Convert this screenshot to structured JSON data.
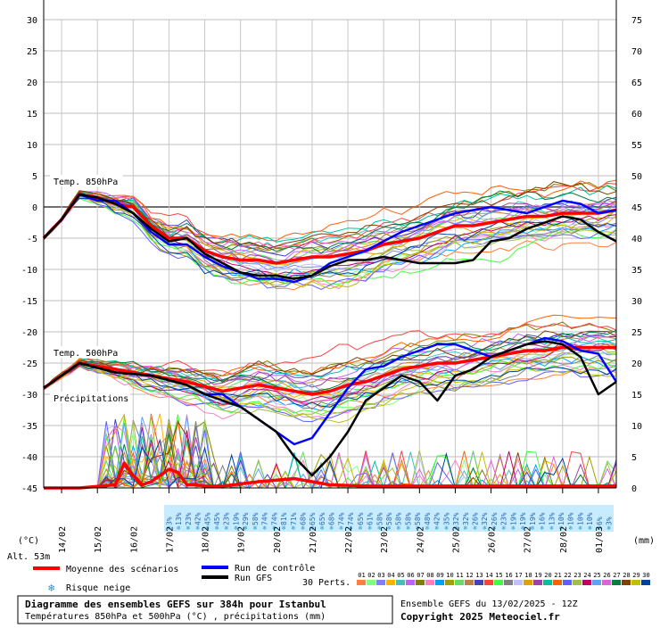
{
  "chart_data": {
    "type": "line",
    "title": "Diagramme des ensembles GEFS sur 384h pour Istanbul",
    "subtitle": "Températures 850hPa et 500hPa (°C) , précipitations (mm)",
    "copyright": "Copyright 2025 Meteociel.fr",
    "run_info": "Ensemble GEFS du 13/02/2025 - 12Z",
    "altitude": "Alt. 53m",
    "left_unit": "(°C)",
    "right_unit": "(mm)",
    "labels": {
      "t850": "Temp. 850hPa",
      "t500": "Temp. 500hPa",
      "precip": "Précipitations"
    },
    "left_axis": {
      "ylim": [
        -45,
        30
      ],
      "ticks": [
        30,
        25,
        20,
        15,
        10,
        5,
        0,
        -5,
        -10,
        -15,
        -20,
        -25,
        -30,
        -35,
        -40,
        -45
      ]
    },
    "right_axis": {
      "ylim": [
        0,
        75
      ],
      "ticks": [
        75,
        70,
        65,
        60,
        55,
        50,
        45,
        40,
        35,
        30,
        25,
        20,
        15,
        10,
        5,
        0
      ]
    },
    "dates": [
      "14/02",
      "15/02",
      "16/02",
      "17/02",
      "18/02",
      "19/02",
      "20/02",
      "21/02",
      "22/02",
      "23/02",
      "24/02",
      "25/02",
      "26/02",
      "27/02",
      "28/02",
      "01/03"
    ],
    "x_range_hours": [
      0,
      384
    ],
    "snow_risk": [
      "3%",
      "13%",
      "23%",
      "42%",
      "45%",
      "45%",
      "23%",
      "19%",
      "29%",
      "58%",
      "74%",
      "74%",
      "81%",
      "71%",
      "68%",
      "65%",
      "65%",
      "68%",
      "74%",
      "74%",
      "65%",
      "61%",
      "58%",
      "58%",
      "58%",
      "58%",
      "58%",
      "48%",
      "42%",
      "35%",
      "32%",
      "32%",
      "26%",
      "32%",
      "26%",
      "23%",
      "19%",
      "19%",
      "19%",
      "16%",
      "13%",
      "10%",
      "10%",
      "10%",
      "10%",
      "6%",
      "3%"
    ],
    "series": [
      {
        "name": "Moyenne des scénarios 850hPa",
        "color": "#ff0000",
        "x": [
          0,
          6,
          12,
          24,
          36,
          48,
          60,
          72,
          84,
          96,
          108,
          120,
          132,
          144,
          156,
          168,
          180,
          192,
          204,
          216,
          228,
          240,
          252,
          264,
          276,
          288,
          300,
          312,
          324,
          336,
          348,
          360,
          372,
          384
        ],
        "values": [
          -5,
          -3.5,
          -2,
          2,
          1.5,
          0.5,
          0,
          -3,
          -5,
          -5,
          -7,
          -8,
          -8.5,
          -8.5,
          -9,
          -8.5,
          -8,
          -8,
          -7.5,
          -7,
          -6,
          -5.5,
          -5,
          -4,
          -3,
          -3,
          -2.5,
          -2,
          -1.5,
          -1.5,
          -1,
          -1,
          -1,
          -0.5
        ]
      },
      {
        "name": "Moyenne des scénarios 500hPa",
        "color": "#ff0000",
        "x": [
          0,
          12,
          24,
          48,
          72,
          96,
          120,
          144,
          168,
          180,
          192,
          204,
          216,
          228,
          240,
          252,
          264,
          276,
          288,
          300,
          312,
          324,
          336,
          348,
          360,
          372,
          384
        ],
        "values": [
          -29,
          -27,
          -25,
          -26,
          -27,
          -28,
          -29.5,
          -28.5,
          -29.5,
          -30,
          -29.5,
          -28.5,
          -28,
          -27,
          -26,
          -25.5,
          -25,
          -25,
          -24.5,
          -24,
          -23.5,
          -23,
          -23,
          -22.5,
          -22.5,
          -22.5,
          -22.5
        ]
      },
      {
        "name": "Run de contrôle 850hPa",
        "color": "#0000ff",
        "x": [
          0,
          12,
          24,
          36,
          48,
          60,
          72,
          84,
          96,
          108,
          120,
          132,
          144,
          156,
          168,
          180,
          192,
          204,
          216,
          228,
          240,
          252,
          264,
          276,
          288,
          300,
          312,
          324,
          336,
          348,
          360,
          372,
          384
        ],
        "values": [
          -5,
          -2,
          2,
          1,
          1,
          -1,
          -4,
          -6,
          -6,
          -8,
          -9.5,
          -10.5,
          -11.5,
          -11.5,
          -12,
          -11,
          -9,
          -8,
          -7,
          -5.5,
          -4,
          -3,
          -2,
          -1,
          -0.5,
          0,
          -0.5,
          -1,
          0,
          1,
          0.5,
          -1,
          -0.5
        ]
      },
      {
        "name": "Run de contrôle 500hPa",
        "color": "#0000ff",
        "x": [
          0,
          24,
          48,
          72,
          96,
          108,
          120,
          132,
          144,
          156,
          168,
          180,
          192,
          204,
          216,
          228,
          240,
          252,
          264,
          276,
          288,
          300,
          312,
          324,
          336,
          348,
          360,
          372,
          384
        ],
        "values": [
          -29,
          -25,
          -26.5,
          -27,
          -28.5,
          -30,
          -30,
          -32,
          -34,
          -36,
          -38,
          -37,
          -33,
          -29,
          -26,
          -25.5,
          -24,
          -23,
          -22,
          -22,
          -23,
          -24,
          -23,
          -22,
          -21,
          -21.5,
          -23,
          -23.5,
          -28
        ]
      },
      {
        "name": "Run GFS 850hPa",
        "color": "#000000",
        "x": [
          0,
          12,
          24,
          36,
          48,
          60,
          72,
          84,
          96,
          108,
          120,
          132,
          144,
          156,
          168,
          180,
          192,
          204,
          216,
          228,
          240,
          252,
          264,
          276,
          288,
          300,
          312,
          324,
          336,
          348,
          360,
          372,
          384
        ],
        "values": [
          -5,
          -2,
          2,
          1.5,
          0.5,
          -1,
          -3.5,
          -5.5,
          -5,
          -7.5,
          -9,
          -10.5,
          -11,
          -11,
          -11.5,
          -11,
          -9.5,
          -8.5,
          -8.5,
          -8,
          -8.5,
          -9,
          -9,
          -9,
          -8.5,
          -5.5,
          -5,
          -3.5,
          -2.5,
          -1.5,
          -2,
          -4,
          -5.5
        ]
      },
      {
        "name": "Run GFS 500hPa",
        "color": "#000000",
        "x": [
          0,
          24,
          48,
          72,
          96,
          108,
          120,
          132,
          144,
          156,
          168,
          180,
          192,
          204,
          216,
          228,
          240,
          252,
          264,
          276,
          288,
          300,
          312,
          324,
          336,
          348,
          360,
          372,
          384
        ],
        "values": [
          -29,
          -25,
          -26.5,
          -27,
          -28.5,
          -30,
          -31,
          -32,
          -34,
          -36,
          -40,
          -43,
          -40,
          -36,
          -31,
          -29,
          -27,
          -28,
          -31,
          -27,
          -26,
          -24,
          -23,
          -22,
          -21.5,
          -22,
          -24,
          -30,
          -28
        ]
      },
      {
        "name": "Moyenne des scénarios précipitations (mm)",
        "color": "#ff0000",
        "x": [
          0,
          24,
          48,
          54,
          60,
          66,
          72,
          84,
          90,
          96,
          102,
          108,
          120,
          144,
          168,
          192,
          216,
          240,
          264,
          288,
          312,
          336,
          360,
          384
        ],
        "values": [
          0,
          0,
          0.5,
          4,
          2,
          0.5,
          1,
          3,
          2.5,
          0.5,
          0.5,
          0.3,
          0.3,
          1,
          1.5,
          0.5,
          0.3,
          0.3,
          0.3,
          0.3,
          0.3,
          0.3,
          0.3,
          0.3
        ]
      }
    ],
    "legend": {
      "mean": "Moyenne des scénarios",
      "control": "Run de contrôle",
      "gfs": "Run GFS",
      "perts": "30 Perts.",
      "snow": "Risque neige",
      "pert_numbers": [
        "01",
        "02",
        "03",
        "04",
        "05",
        "06",
        "07",
        "08",
        "09",
        "10",
        "11",
        "12",
        "13",
        "14",
        "15",
        "16",
        "17",
        "18",
        "19",
        "20",
        "21",
        "22",
        "23",
        "24",
        "25",
        "26",
        "27",
        "28",
        "29",
        "30"
      ],
      "pert_colors": [
        "#ff8040",
        "#80ff80",
        "#8080ff",
        "#ffb000",
        "#40c0c0",
        "#c060ff",
        "#808000",
        "#ff80c0",
        "#00a0ff",
        "#a0a000",
        "#60e060",
        "#c08040",
        "#4040c0",
        "#ff4040",
        "#40ff40",
        "#808080",
        "#c0c0ff",
        "#e0a000",
        "#a040a0",
        "#00c0a0",
        "#ff6000",
        "#6060ff",
        "#a0c040",
        "#c00060",
        "#60a0ff",
        "#e060e0",
        "#008040",
        "#804000",
        "#c0c000",
        "#0040a0"
      ]
    }
  }
}
